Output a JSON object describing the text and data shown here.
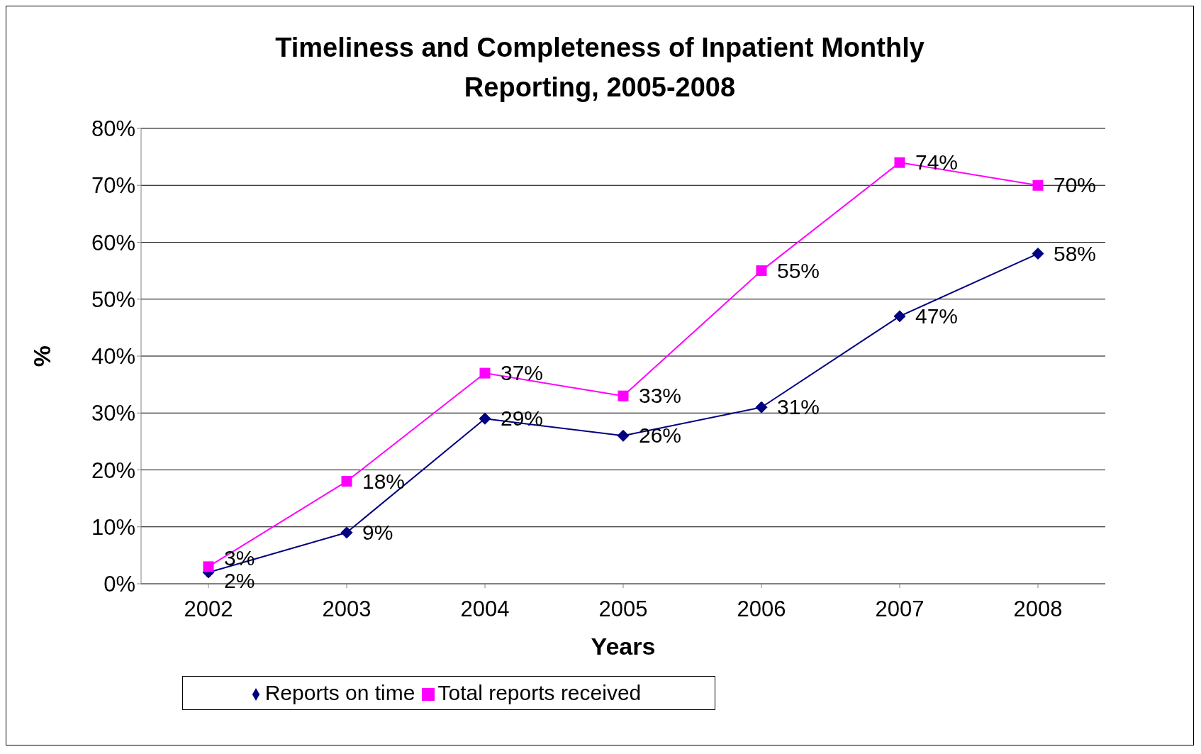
{
  "chart_data": {
    "type": "line",
    "title": "Timeliness and Completeness of Inpatient Monthly Reporting, 2005-2008",
    "xlabel": "Years",
    "ylabel": "%",
    "categories": [
      "2002",
      "2003",
      "2004",
      "2005",
      "2006",
      "2007",
      "2008"
    ],
    "series": [
      {
        "name": "Reports on time",
        "color": "#000080",
        "marker": "diamond",
        "values": [
          2,
          9,
          29,
          26,
          31,
          47,
          58
        ],
        "value_labels": [
          "2%",
          "9%",
          "29%",
          "26%",
          "31%",
          "47%",
          "58%"
        ]
      },
      {
        "name": "Total reports received",
        "color": "#ff00ff",
        "marker": "square",
        "values": [
          3,
          18,
          37,
          33,
          55,
          74,
          70
        ],
        "value_labels": [
          "3%",
          "18%",
          "37%",
          "33%",
          "55%",
          "74%",
          "70%"
        ]
      }
    ],
    "ylim": [
      0,
      80
    ],
    "yticks": [
      {
        "value": 0,
        "label": "0%"
      },
      {
        "value": 10,
        "label": "10%"
      },
      {
        "value": 20,
        "label": "20%"
      },
      {
        "value": 30,
        "label": "30%"
      },
      {
        "value": 40,
        "label": "40%"
      },
      {
        "value": 50,
        "label": "50%"
      },
      {
        "value": 60,
        "label": "60%"
      },
      {
        "value": 70,
        "label": "70%"
      },
      {
        "value": 80,
        "label": "80%"
      }
    ],
    "grid": "y",
    "legend": "bottom",
    "line_style": "solid"
  }
}
